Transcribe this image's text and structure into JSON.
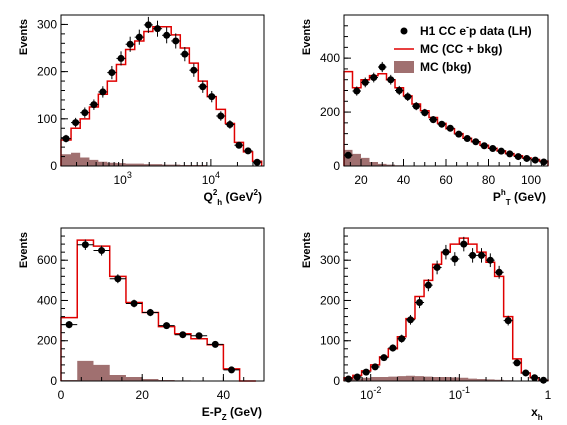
{
  "chart_data": [
    {
      "type": "histogram",
      "panel": "Q2",
      "ylabel": "Events",
      "xlabel": "Q",
      "xlabel_sub": "h",
      "xlabel_sup": "2",
      "xlabel_unit": "(GeV",
      "xlabel_unit_sup": "2",
      "xlabel_unit_end": ")",
      "xscale": "log",
      "xlim": [
        200,
        40000
      ],
      "ylim": [
        0,
        320
      ],
      "yticks": [
        0,
        100,
        200,
        300
      ],
      "ytick_labels": [
        "0",
        "100",
        "200",
        "300"
      ],
      "xticks": [
        1000,
        10000
      ],
      "xtick_labels": [
        {
          "base": "10",
          "exp": "3"
        },
        {
          "base": "10",
          "exp": "4"
        }
      ],
      "edges": [
        200,
        260,
        330,
        420,
        530,
        670,
        850,
        1080,
        1370,
        1740,
        2200,
        2800,
        3550,
        4500,
        5700,
        7200,
        9100,
        11500,
        14600,
        18500,
        23400,
        29700,
        37600
      ],
      "data": [
        58,
        92,
        113,
        130,
        157,
        198,
        228,
        258,
        273,
        299,
        291,
        277,
        265,
        237,
        203,
        168,
        147,
        106,
        88,
        44,
        32,
        8
      ],
      "errors": [
        8,
        10,
        11,
        11,
        12,
        14,
        15,
        16,
        16,
        17,
        17,
        17,
        16,
        15,
        14,
        13,
        12,
        10,
        9,
        7,
        6,
        3
      ],
      "mc_total": [
        55,
        80,
        100,
        125,
        152,
        180,
        215,
        247,
        265,
        285,
        295,
        295,
        278,
        250,
        218,
        180,
        147,
        120,
        90,
        50,
        30,
        10
      ],
      "mc_bkg": [
        25,
        28,
        18,
        13,
        9,
        7,
        6,
        5,
        5,
        4,
        4,
        3,
        3,
        2,
        2,
        2,
        1,
        1,
        1,
        0,
        0,
        0
      ]
    },
    {
      "type": "histogram",
      "panel": "PT",
      "ylabel": "Events",
      "xlabel": "P",
      "xlabel_sub": "T",
      "xlabel_sup": "h",
      "xlabel_unit": "(GeV)",
      "xscale": "linear",
      "xlim": [
        12,
        108
      ],
      "ylim": [
        0,
        560
      ],
      "yticks": [
        0,
        200,
        400
      ],
      "ytick_labels": [
        "0",
        "200",
        "400"
      ],
      "xticks": [
        20,
        40,
        60,
        80,
        100
      ],
      "xtick_labels": [
        "20",
        "40",
        "60",
        "80",
        "100"
      ],
      "edges": [
        12,
        16,
        20,
        24,
        28,
        32,
        36,
        40,
        44,
        48,
        52,
        56,
        60,
        64,
        68,
        72,
        76,
        80,
        84,
        88,
        92,
        96,
        100,
        104,
        108
      ],
      "data": [
        40,
        278,
        310,
        328,
        367,
        320,
        280,
        257,
        222,
        198,
        172,
        155,
        140,
        118,
        102,
        90,
        75,
        65,
        55,
        45,
        35,
        28,
        22,
        15
      ],
      "errors": [
        7,
        17,
        18,
        18,
        19,
        18,
        17,
        16,
        15,
        14,
        13,
        12,
        12,
        11,
        10,
        9,
        9,
        8,
        7,
        7,
        6,
        5,
        5,
        4
      ],
      "mc_total": [
        350,
        290,
        320,
        335,
        342,
        320,
        290,
        260,
        230,
        205,
        180,
        158,
        138,
        120,
        103,
        90,
        77,
        66,
        56,
        46,
        38,
        30,
        24,
        18
      ],
      "mc_bkg": [
        60,
        45,
        30,
        15,
        8,
        5,
        3,
        2,
        1,
        1,
        1,
        0,
        0,
        0,
        0,
        0,
        0,
        0,
        0,
        0,
        0,
        0,
        0,
        0
      ]
    },
    {
      "type": "histogram",
      "panel": "E-PZ",
      "ylabel": "Events",
      "xlabel": "E-P",
      "xlabel_sub": "Z",
      "xlabel_unit": "(GeV)",
      "xscale": "linear",
      "xlim": [
        0,
        50
      ],
      "ylim": [
        0,
        760
      ],
      "yticks": [
        0,
        200,
        400,
        600
      ],
      "ytick_labels": [
        "0",
        "200",
        "400",
        "600"
      ],
      "xticks": [
        0,
        20,
        40
      ],
      "xtick_labels": [
        "0",
        "20",
        "40"
      ],
      "edges": [
        0,
        4,
        8,
        12,
        16,
        20,
        24,
        28,
        32,
        36,
        40,
        44,
        48
      ],
      "data": [
        280,
        677,
        648,
        508,
        385,
        340,
        275,
        230,
        225,
        182,
        55,
        0
      ],
      "errors": [
        18,
        26,
        25,
        22,
        19,
        18,
        16,
        15,
        15,
        13,
        7,
        0
      ],
      "mc_total": [
        315,
        700,
        670,
        520,
        390,
        340,
        270,
        235,
        210,
        180,
        60,
        0
      ],
      "mc_bkg": [
        5,
        100,
        80,
        30,
        20,
        10,
        5,
        3,
        2,
        1,
        0,
        0
      ]
    },
    {
      "type": "histogram",
      "panel": "xh",
      "ylabel": "Events",
      "xlabel": "x",
      "xlabel_sub": "h",
      "xscale": "log",
      "xlim": [
        0.005,
        1.0
      ],
      "ylim": [
        0,
        380
      ],
      "yticks": [
        0,
        100,
        200,
        300
      ],
      "ytick_labels": [
        "0",
        "100",
        "200",
        "300"
      ],
      "xticks": [
        0.01,
        0.1,
        1
      ],
      "xtick_labels": [
        {
          "base": "10",
          "exp": "-2"
        },
        {
          "base": "10",
          "exp": "-1"
        },
        {
          "base": "1",
          "exp": ""
        }
      ],
      "edges": [
        0.005,
        0.0063,
        0.0079,
        0.01,
        0.0126,
        0.0158,
        0.02,
        0.025,
        0.0316,
        0.04,
        0.05,
        0.063,
        0.079,
        0.1,
        0.126,
        0.158,
        0.2,
        0.25,
        0.316,
        0.4,
        0.5,
        0.63,
        0.79,
        1.0
      ],
      "data": [
        5,
        10,
        22,
        35,
        58,
        82,
        105,
        152,
        195,
        238,
        282,
        320,
        303,
        340,
        312,
        312,
        300,
        270,
        150,
        45,
        20,
        8,
        2
      ],
      "errors": [
        2,
        3,
        5,
        6,
        8,
        9,
        10,
        12,
        14,
        15,
        17,
        18,
        17,
        18,
        18,
        18,
        17,
        16,
        12,
        7,
        5,
        3,
        1
      ],
      "mc_total": [
        8,
        14,
        25,
        40,
        60,
        80,
        110,
        155,
        210,
        250,
        290,
        320,
        340,
        355,
        340,
        320,
        295,
        260,
        160,
        55,
        20,
        8,
        2
      ],
      "mc_bkg": [
        4,
        6,
        8,
        10,
        10,
        11,
        12,
        13,
        12,
        11,
        10,
        10,
        9,
        8,
        6,
        5,
        4,
        3,
        2,
        1,
        0,
        0,
        0
      ]
    }
  ],
  "legend": {
    "entries": [
      {
        "kind": "marker",
        "label": "H1 CC e",
        "label_sup": "-",
        "label_rest": "p data (LH)"
      },
      {
        "kind": "line",
        "label": "MC (CC + bkg)",
        "color": "#e00000"
      },
      {
        "kind": "box",
        "label": "MC (bkg)",
        "color": "#a07070"
      }
    ]
  },
  "colors": {
    "mc_total": "#e00000",
    "mc_bkg": "#a07070",
    "data": "#000000"
  }
}
